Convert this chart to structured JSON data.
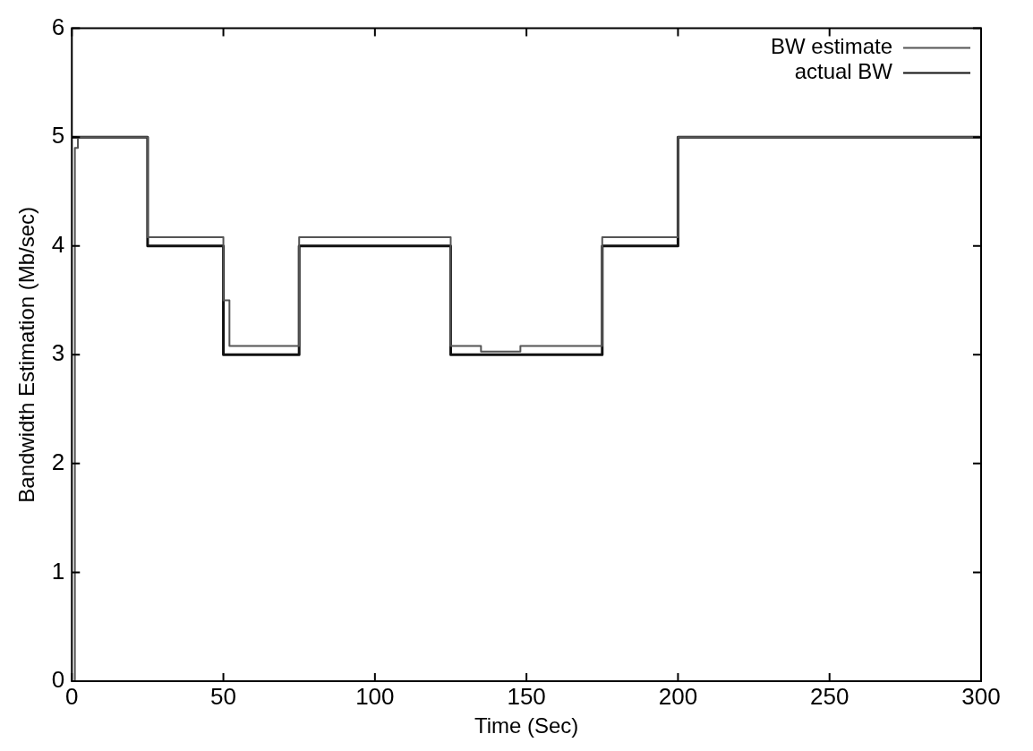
{
  "chart_data": {
    "type": "step",
    "xlabel": "Time (Sec)",
    "ylabel": "Bandwidth Estimation (Mb/sec)",
    "xlim": [
      0,
      300
    ],
    "ylim": [
      0,
      6
    ],
    "xticks": [
      0,
      50,
      100,
      150,
      200,
      250,
      300
    ],
    "yticks": [
      0,
      1,
      2,
      3,
      4,
      5,
      6
    ],
    "grid": false,
    "legend": "top right",
    "marker": "none",
    "series": [
      {
        "name": "BW estimate",
        "color": "#555555",
        "x": [
          0,
          1,
          2,
          25,
          50,
          52,
          75,
          125,
          135,
          148,
          175,
          200,
          300
        ],
        "values": [
          0,
          4.9,
          5,
          4.08,
          3.5,
          3.08,
          4.08,
          3.08,
          3.03,
          3.08,
          4.08,
          5,
          5
        ]
      },
      {
        "name": "actual BW",
        "color": "#111111",
        "x": [
          0,
          25,
          50,
          75,
          125,
          175,
          200,
          300
        ],
        "values": [
          5,
          4,
          3,
          4,
          3,
          4,
          5,
          5
        ]
      }
    ]
  }
}
